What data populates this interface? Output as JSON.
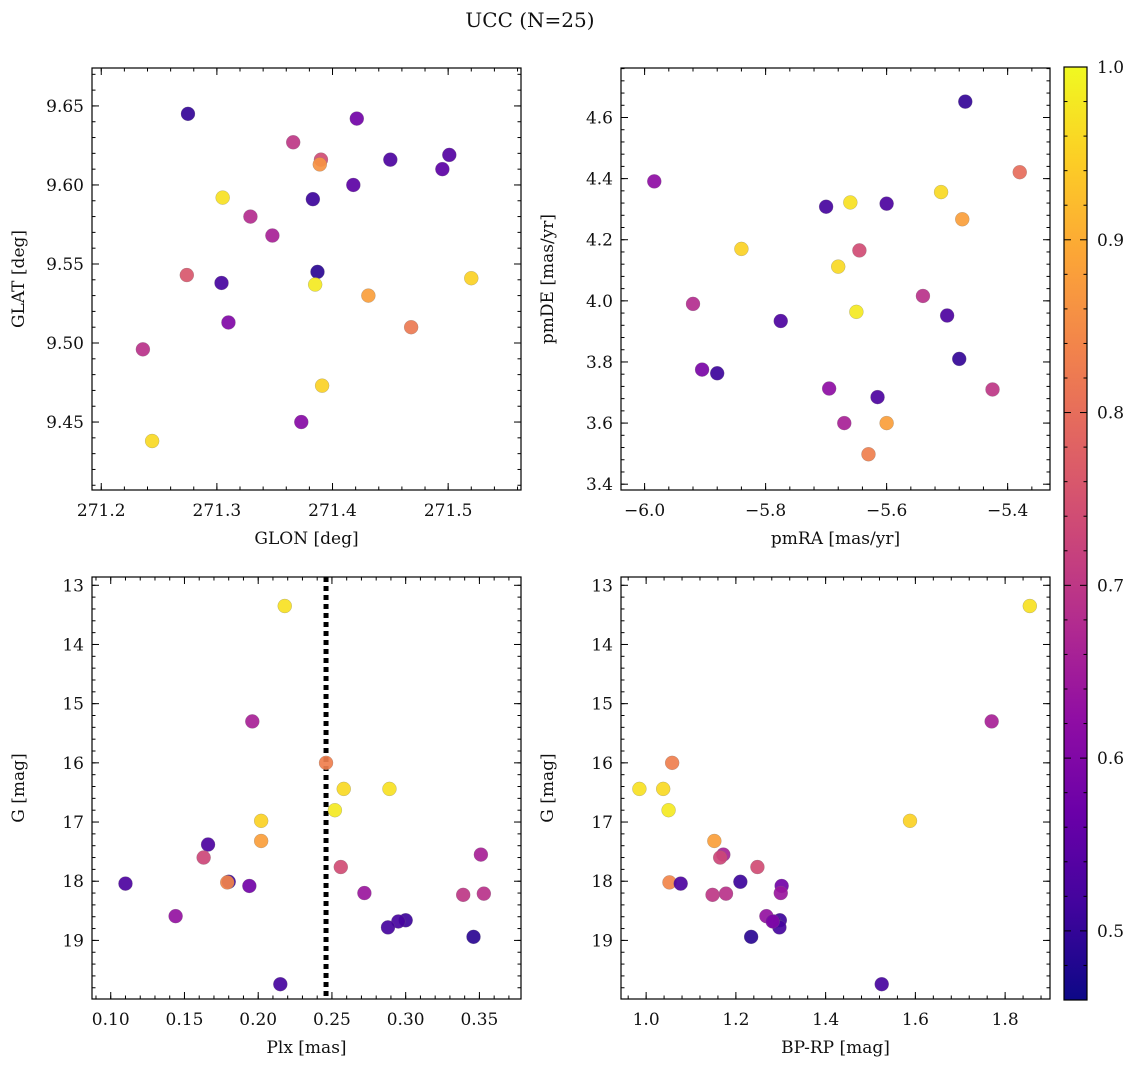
{
  "figure": {
    "title": "UCC (N=25)"
  },
  "colorbar": {
    "range": [
      0.46,
      1.0
    ],
    "ticks": [
      0.5,
      0.6,
      0.7,
      0.8,
      0.9,
      1.0
    ],
    "tick_labels": [
      "0.5",
      "0.6",
      "0.7",
      "0.8",
      "0.9",
      "1.0"
    ],
    "colormap": "plasma"
  },
  "chart_data": [
    {
      "type": "scatter",
      "id": "glon_glat",
      "xlabel": "GLON [deg]",
      "ylabel": "GLAT [deg]",
      "xlim": [
        271.192,
        271.563
      ],
      "ylim": [
        9.407,
        9.674
      ],
      "xticks": [
        271.2,
        271.3,
        271.4,
        271.5
      ],
      "xtick_labels": [
        "271.2",
        "271.3",
        "271.4",
        "271.5"
      ],
      "yticks": [
        9.45,
        9.5,
        9.55,
        9.6,
        9.65
      ],
      "ytick_labels": [
        "9.45",
        "9.50",
        "9.55",
        "9.60",
        "9.65"
      ],
      "invert_y": false,
      "points": [
        {
          "x": 271.275,
          "y": 9.645,
          "p": 0.5
        },
        {
          "x": 271.421,
          "y": 9.642,
          "p": 0.58
        },
        {
          "x": 271.366,
          "y": 9.627,
          "p": 0.7
        },
        {
          "x": 271.39,
          "y": 9.616,
          "p": 0.74
        },
        {
          "x": 271.389,
          "y": 9.613,
          "p": 0.86
        },
        {
          "x": 271.45,
          "y": 9.616,
          "p": 0.53
        },
        {
          "x": 271.501,
          "y": 9.619,
          "p": 0.54
        },
        {
          "x": 271.495,
          "y": 9.61,
          "p": 0.55
        },
        {
          "x": 271.418,
          "y": 9.6,
          "p": 0.55
        },
        {
          "x": 271.383,
          "y": 9.591,
          "p": 0.51
        },
        {
          "x": 271.305,
          "y": 9.592,
          "p": 0.97
        },
        {
          "x": 271.329,
          "y": 9.58,
          "p": 0.68
        },
        {
          "x": 271.348,
          "y": 9.568,
          "p": 0.66
        },
        {
          "x": 271.274,
          "y": 9.543,
          "p": 0.76
        },
        {
          "x": 271.387,
          "y": 9.545,
          "p": 0.49
        },
        {
          "x": 271.304,
          "y": 9.538,
          "p": 0.52
        },
        {
          "x": 271.385,
          "y": 9.537,
          "p": 0.98
        },
        {
          "x": 271.52,
          "y": 9.541,
          "p": 0.95
        },
        {
          "x": 271.431,
          "y": 9.53,
          "p": 0.88
        },
        {
          "x": 271.31,
          "y": 9.513,
          "p": 0.6
        },
        {
          "x": 271.468,
          "y": 9.51,
          "p": 0.82
        },
        {
          "x": 271.236,
          "y": 9.496,
          "p": 0.69
        },
        {
          "x": 271.391,
          "y": 9.473,
          "p": 0.95
        },
        {
          "x": 271.373,
          "y": 9.45,
          "p": 0.61
        },
        {
          "x": 271.244,
          "y": 9.438,
          "p": 0.96
        }
      ]
    },
    {
      "type": "scatter",
      "id": "pmra_pmde",
      "xlabel": "pmRA [mas/yr]",
      "ylabel": "pmDE [mas/yr]",
      "xlim": [
        -6.039,
        -5.33
      ],
      "ylim": [
        3.381,
        4.762
      ],
      "xticks": [
        -6.0,
        -5.8,
        -5.6,
        -5.4
      ],
      "xtick_labels": [
        "−6.0",
        "−5.8",
        "−5.6",
        "−5.4"
      ],
      "yticks": [
        3.4,
        3.6,
        3.8,
        4.0,
        4.2,
        4.4,
        4.6
      ],
      "ytick_labels": [
        "3.4",
        "3.6",
        "3.8",
        "4.0",
        "4.2",
        "4.4",
        "4.6"
      ],
      "invert_y": false,
      "points": [
        {
          "x": -5.47,
          "y": 4.652,
          "p": 0.5
        },
        {
          "x": -5.984,
          "y": 4.391,
          "p": 0.62
        },
        {
          "x": -5.38,
          "y": 4.421,
          "p": 0.8
        },
        {
          "x": -5.51,
          "y": 4.356,
          "p": 0.96
        },
        {
          "x": -5.66,
          "y": 4.322,
          "p": 0.97
        },
        {
          "x": -5.6,
          "y": 4.318,
          "p": 0.53
        },
        {
          "x": -5.7,
          "y": 4.308,
          "p": 0.52
        },
        {
          "x": -5.475,
          "y": 4.267,
          "p": 0.88
        },
        {
          "x": -5.84,
          "y": 4.17,
          "p": 0.95
        },
        {
          "x": -5.645,
          "y": 4.165,
          "p": 0.74
        },
        {
          "x": -5.68,
          "y": 4.112,
          "p": 0.96
        },
        {
          "x": -5.92,
          "y": 3.99,
          "p": 0.68
        },
        {
          "x": -5.54,
          "y": 4.016,
          "p": 0.69
        },
        {
          "x": -5.65,
          "y": 3.964,
          "p": 0.98
        },
        {
          "x": -5.5,
          "y": 3.952,
          "p": 0.53
        },
        {
          "x": -5.775,
          "y": 3.934,
          "p": 0.53
        },
        {
          "x": -5.48,
          "y": 3.81,
          "p": 0.5
        },
        {
          "x": -5.905,
          "y": 3.775,
          "p": 0.59
        },
        {
          "x": -5.88,
          "y": 3.763,
          "p": 0.51
        },
        {
          "x": -5.425,
          "y": 3.71,
          "p": 0.7
        },
        {
          "x": -5.695,
          "y": 3.713,
          "p": 0.62
        },
        {
          "x": -5.615,
          "y": 3.685,
          "p": 0.53
        },
        {
          "x": -5.67,
          "y": 3.6,
          "p": 0.66
        },
        {
          "x": -5.6,
          "y": 3.6,
          "p": 0.88
        },
        {
          "x": -5.63,
          "y": 3.498,
          "p": 0.83
        }
      ]
    },
    {
      "type": "scatter",
      "id": "plx_g",
      "xlabel": "Plx [mas]",
      "ylabel": "G [mag]",
      "xlim": [
        0.0873,
        0.3782
      ],
      "ylim": [
        12.86,
        19.99
      ],
      "xticks": [
        0.1,
        0.15,
        0.2,
        0.25,
        0.3,
        0.35
      ],
      "xtick_labels": [
        "0.10",
        "0.15",
        "0.20",
        "0.25",
        "0.30",
        "0.35"
      ],
      "yticks": [
        13,
        14,
        15,
        16,
        17,
        18,
        19
      ],
      "ytick_labels": [
        "13",
        "14",
        "15",
        "16",
        "17",
        "18",
        "19"
      ],
      "invert_y": true,
      "vline": {
        "x": 0.246,
        "style": "dotted"
      },
      "points": [
        {
          "x": 0.218,
          "y": 13.35,
          "p": 0.97
        },
        {
          "x": 0.196,
          "y": 15.3,
          "p": 0.66
        },
        {
          "x": 0.246,
          "y": 16.0,
          "p": 0.83
        },
        {
          "x": 0.258,
          "y": 16.44,
          "p": 0.96
        },
        {
          "x": 0.289,
          "y": 16.44,
          "p": 0.97
        },
        {
          "x": 0.252,
          "y": 16.8,
          "p": 0.98
        },
        {
          "x": 0.202,
          "y": 16.98,
          "p": 0.95
        },
        {
          "x": 0.202,
          "y": 17.32,
          "p": 0.88
        },
        {
          "x": 0.166,
          "y": 17.38,
          "p": 0.53
        },
        {
          "x": 0.163,
          "y": 17.6,
          "p": 0.73
        },
        {
          "x": 0.351,
          "y": 17.55,
          "p": 0.66
        },
        {
          "x": 0.256,
          "y": 17.76,
          "p": 0.74
        },
        {
          "x": 0.18,
          "y": 18.01,
          "p": 0.51
        },
        {
          "x": 0.179,
          "y": 18.02,
          "p": 0.84
        },
        {
          "x": 0.11,
          "y": 18.04,
          "p": 0.53
        },
        {
          "x": 0.194,
          "y": 18.08,
          "p": 0.58
        },
        {
          "x": 0.272,
          "y": 18.2,
          "p": 0.64
        },
        {
          "x": 0.339,
          "y": 18.23,
          "p": 0.7
        },
        {
          "x": 0.353,
          "y": 18.21,
          "p": 0.69
        },
        {
          "x": 0.144,
          "y": 18.59,
          "p": 0.63
        },
        {
          "x": 0.3,
          "y": 18.66,
          "p": 0.51
        },
        {
          "x": 0.295,
          "y": 18.68,
          "p": 0.52
        },
        {
          "x": 0.288,
          "y": 18.78,
          "p": 0.52
        },
        {
          "x": 0.346,
          "y": 18.94,
          "p": 0.49
        },
        {
          "x": 0.215,
          "y": 19.74,
          "p": 0.52
        }
      ]
    },
    {
      "type": "scatter",
      "id": "bprp_g",
      "xlabel": "BP-RP [mag]",
      "ylabel": "G [mag]",
      "xlim": [
        0.944,
        1.9
      ],
      "ylim": [
        12.86,
        19.99
      ],
      "xticks": [
        1.0,
        1.2,
        1.4,
        1.6,
        1.8
      ],
      "xtick_labels": [
        "1.0",
        "1.2",
        "1.4",
        "1.6",
        "1.8"
      ],
      "yticks": [
        13,
        14,
        15,
        16,
        17,
        18,
        19
      ],
      "ytick_labels": [
        "13",
        "14",
        "15",
        "16",
        "17",
        "18",
        "19"
      ],
      "invert_y": true,
      "points": [
        {
          "x": 1.855,
          "y": 13.35,
          "p": 0.97
        },
        {
          "x": 1.77,
          "y": 15.3,
          "p": 0.66
        },
        {
          "x": 1.058,
          "y": 16.0,
          "p": 0.83
        },
        {
          "x": 0.985,
          "y": 16.44,
          "p": 0.97
        },
        {
          "x": 1.038,
          "y": 16.44,
          "p": 0.96
        },
        {
          "x": 1.05,
          "y": 16.8,
          "p": 0.98
        },
        {
          "x": 1.588,
          "y": 16.98,
          "p": 0.95
        },
        {
          "x": 1.152,
          "y": 17.32,
          "p": 0.88
        },
        {
          "x": 1.172,
          "y": 17.55,
          "p": 0.66
        },
        {
          "x": 1.165,
          "y": 17.6,
          "p": 0.73
        },
        {
          "x": 1.248,
          "y": 17.76,
          "p": 0.74
        },
        {
          "x": 1.21,
          "y": 18.01,
          "p": 0.51
        },
        {
          "x": 1.052,
          "y": 18.02,
          "p": 0.84
        },
        {
          "x": 1.077,
          "y": 18.04,
          "p": 0.53
        },
        {
          "x": 1.302,
          "y": 18.08,
          "p": 0.58
        },
        {
          "x": 1.3,
          "y": 18.2,
          "p": 0.64
        },
        {
          "x": 1.148,
          "y": 18.23,
          "p": 0.7
        },
        {
          "x": 1.178,
          "y": 18.21,
          "p": 0.69
        },
        {
          "x": 1.268,
          "y": 18.59,
          "p": 0.63
        },
        {
          "x": 1.298,
          "y": 18.66,
          "p": 0.51
        },
        {
          "x": 1.285,
          "y": 18.68,
          "p": 0.52
        },
        {
          "x": 1.297,
          "y": 18.78,
          "p": 0.52
        },
        {
          "x": 1.234,
          "y": 18.94,
          "p": 0.49
        },
        {
          "x": 1.525,
          "y": 19.74,
          "p": 0.52
        },
        {
          "x": 1.282,
          "y": 18.68,
          "p": 0.6
        }
      ]
    }
  ]
}
